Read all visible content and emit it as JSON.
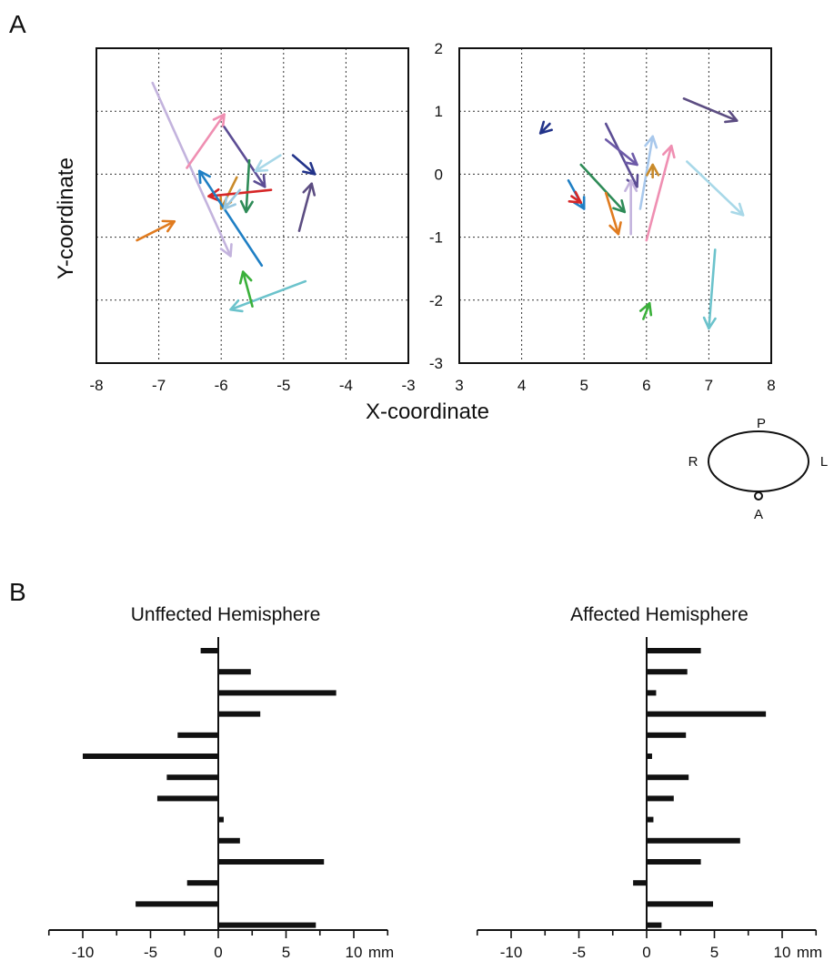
{
  "panels": {
    "a": "A",
    "b": "B"
  },
  "orientation": {
    "p": "P",
    "r": "R",
    "l": "L",
    "a": "A"
  },
  "chart_data": [
    {
      "type": "scatter",
      "id": "A-left",
      "xlabel": "X-coordinate",
      "ylabel": "Y-coordinate",
      "xlim": [
        -8,
        -3
      ],
      "ylim": [
        -3,
        2
      ],
      "xticks": [
        -8,
        -7,
        -6,
        -5,
        -4,
        -3
      ],
      "grid": true,
      "arrows": [
        {
          "x0": -7.1,
          "y0": 1.45,
          "x1": -5.85,
          "y1": -1.3,
          "color": "#c3b3dd"
        },
        {
          "x0": -6.55,
          "y0": 0.1,
          "x1": -5.95,
          "y1": 0.95,
          "color": "#ef8fb2"
        },
        {
          "x0": -5.95,
          "y0": 0.75,
          "x1": -5.3,
          "y1": -0.2,
          "color": "#5c4d94"
        },
        {
          "x0": -5.55,
          "y0": 0.22,
          "x1": -5.6,
          "y1": -0.6,
          "color": "#2e8b57"
        },
        {
          "x0": -5.75,
          "y0": -0.05,
          "x1": -6.0,
          "y1": -0.55,
          "color": "#c98a2a"
        },
        {
          "x0": -5.2,
          "y0": -0.25,
          "x1": -6.2,
          "y1": -0.35,
          "color": "#d62728"
        },
        {
          "x0": -5.35,
          "y0": -1.45,
          "x1": -6.35,
          "y1": 0.05,
          "color": "#1f7fc4"
        },
        {
          "x0": -5.05,
          "y0": 0.3,
          "x1": -5.45,
          "y1": 0.05,
          "color": "#a8d8e8"
        },
        {
          "x0": -4.85,
          "y0": 0.3,
          "x1": -4.5,
          "y1": 0.0,
          "color": "#22338a"
        },
        {
          "x0": -4.75,
          "y0": -0.9,
          "x1": -4.55,
          "y1": -0.15,
          "color": "#5c4d82"
        },
        {
          "x0": -7.35,
          "y0": -1.05,
          "x1": -6.75,
          "y1": -0.75,
          "color": "#e07b1f"
        },
        {
          "x0": -4.65,
          "y0": -1.7,
          "x1": -5.85,
          "y1": -2.15,
          "color": "#6cc3cc"
        },
        {
          "x0": -5.5,
          "y0": -2.1,
          "x1": -5.65,
          "y1": -1.55,
          "color": "#3ab03a"
        },
        {
          "x0": -5.7,
          "y0": -0.25,
          "x1": -5.95,
          "y1": -0.55,
          "color": "#98c7e0"
        }
      ]
    },
    {
      "type": "scatter",
      "id": "A-right",
      "xlim": [
        3,
        8
      ],
      "ylim": [
        -3,
        2
      ],
      "xticks": [
        3,
        4,
        5,
        6,
        7,
        8
      ],
      "yticks": [
        -3,
        -2,
        -1,
        0,
        1,
        2
      ],
      "grid": true,
      "arrows": [
        {
          "x0": 4.45,
          "y0": 0.8,
          "x1": 4.3,
          "y1": 0.65,
          "color": "#22338a"
        },
        {
          "x0": 4.75,
          "y0": -0.1,
          "x1": 5.0,
          "y1": -0.55,
          "color": "#1f7fc4"
        },
        {
          "x0": 4.8,
          "y0": -0.35,
          "x1": 4.95,
          "y1": -0.45,
          "color": "#d62728"
        },
        {
          "x0": 4.95,
          "y0": 0.15,
          "x1": 5.65,
          "y1": -0.6,
          "color": "#2e8b57"
        },
        {
          "x0": 5.35,
          "y0": -0.3,
          "x1": 5.55,
          "y1": -0.95,
          "color": "#e07b1f"
        },
        {
          "x0": 5.35,
          "y0": 0.8,
          "x1": 5.85,
          "y1": -0.2,
          "color": "#5c4d94"
        },
        {
          "x0": 5.35,
          "y0": 0.55,
          "x1": 5.85,
          "y1": 0.15,
          "color": "#6d5aa8"
        },
        {
          "x0": 5.75,
          "y0": -0.95,
          "x1": 5.75,
          "y1": -0.1,
          "color": "#c3b3dd"
        },
        {
          "x0": 5.9,
          "y0": -0.55,
          "x1": 6.1,
          "y1": 0.6,
          "color": "#a8c8ec"
        },
        {
          "x0": 6.1,
          "y0": -0.05,
          "x1": 6.1,
          "y1": 0.15,
          "color": "#c98a2a"
        },
        {
          "x0": 6.0,
          "y0": -1.05,
          "x1": 6.4,
          "y1": 0.45,
          "color": "#ef8fb2"
        },
        {
          "x0": 6.6,
          "y0": 1.2,
          "x1": 7.45,
          "y1": 0.85,
          "color": "#5c4d82"
        },
        {
          "x0": 6.65,
          "y0": 0.2,
          "x1": 7.55,
          "y1": -0.65,
          "color": "#a8d8e8"
        },
        {
          "x0": 7.1,
          "y0": -1.2,
          "x1": 7.0,
          "y1": -2.45,
          "color": "#6cc3cc"
        },
        {
          "x0": 5.95,
          "y0": -2.3,
          "x1": 6.05,
          "y1": -2.05,
          "color": "#3ab03a"
        }
      ]
    },
    {
      "type": "bar",
      "orientation": "horizontal",
      "id": "B-left",
      "title": "Unffected Hemisphere",
      "xticks": [
        -10,
        -5,
        0,
        5,
        10
      ],
      "unit": "mm",
      "xlim": [
        -12.5,
        12.5
      ],
      "values": [
        -1.3,
        2.4,
        8.7,
        3.1,
        -3.0,
        -10.0,
        -3.8,
        -4.5,
        0.4,
        1.6,
        7.8,
        -2.3,
        -6.1,
        7.2
      ]
    },
    {
      "type": "bar",
      "orientation": "horizontal",
      "id": "B-right",
      "title": "Affected Hemisphere",
      "xticks": [
        -10,
        -5,
        0,
        5,
        10
      ],
      "unit": "mm",
      "xlim": [
        -12.5,
        12.5
      ],
      "values": [
        4.0,
        3.0,
        0.7,
        8.8,
        2.9,
        0.4,
        3.1,
        2.0,
        0.5,
        6.9,
        4.0,
        -1.0,
        4.9,
        1.1
      ]
    }
  ]
}
